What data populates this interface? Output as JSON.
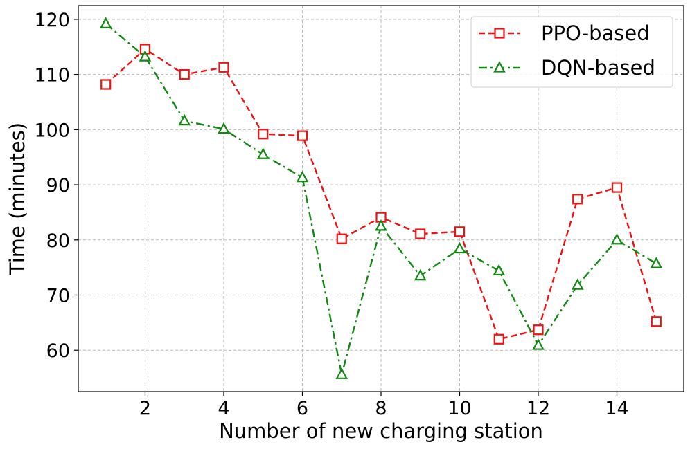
{
  "chart_data": {
    "type": "line",
    "xlabel": "Number of new charging station",
    "ylabel": "Time (minutes)",
    "xlim": [
      0.3,
      15.7
    ],
    "ylim": [
      52.5,
      122.5
    ],
    "xticks": [
      2,
      4,
      6,
      8,
      10,
      12,
      14
    ],
    "yticks": [
      60,
      70,
      80,
      90,
      100,
      110,
      120
    ],
    "grid": true,
    "legend_position": "top-right",
    "x": [
      1,
      2,
      3,
      4,
      5,
      6,
      7,
      8,
      9,
      10,
      11,
      12,
      13,
      14,
      15
    ],
    "series": [
      {
        "name": "PPO-based",
        "color": "#ee1111",
        "line_style": "dashed",
        "marker": "square",
        "values": [
          108.2,
          114.6,
          110.0,
          111.3,
          99.2,
          98.9,
          80.2,
          84.1,
          81.1,
          81.5,
          62.0,
          63.7,
          87.4,
          89.5,
          65.2
        ]
      },
      {
        "name": "DQN-based",
        "color": "#118811",
        "line_style": "dashdot",
        "marker": "triangle",
        "values": [
          119.2,
          113.2,
          101.6,
          100.1,
          95.5,
          91.3,
          55.6,
          82.5,
          73.5,
          78.4,
          74.4,
          60.9,
          71.8,
          80.0,
          75.7
        ]
      }
    ]
  }
}
